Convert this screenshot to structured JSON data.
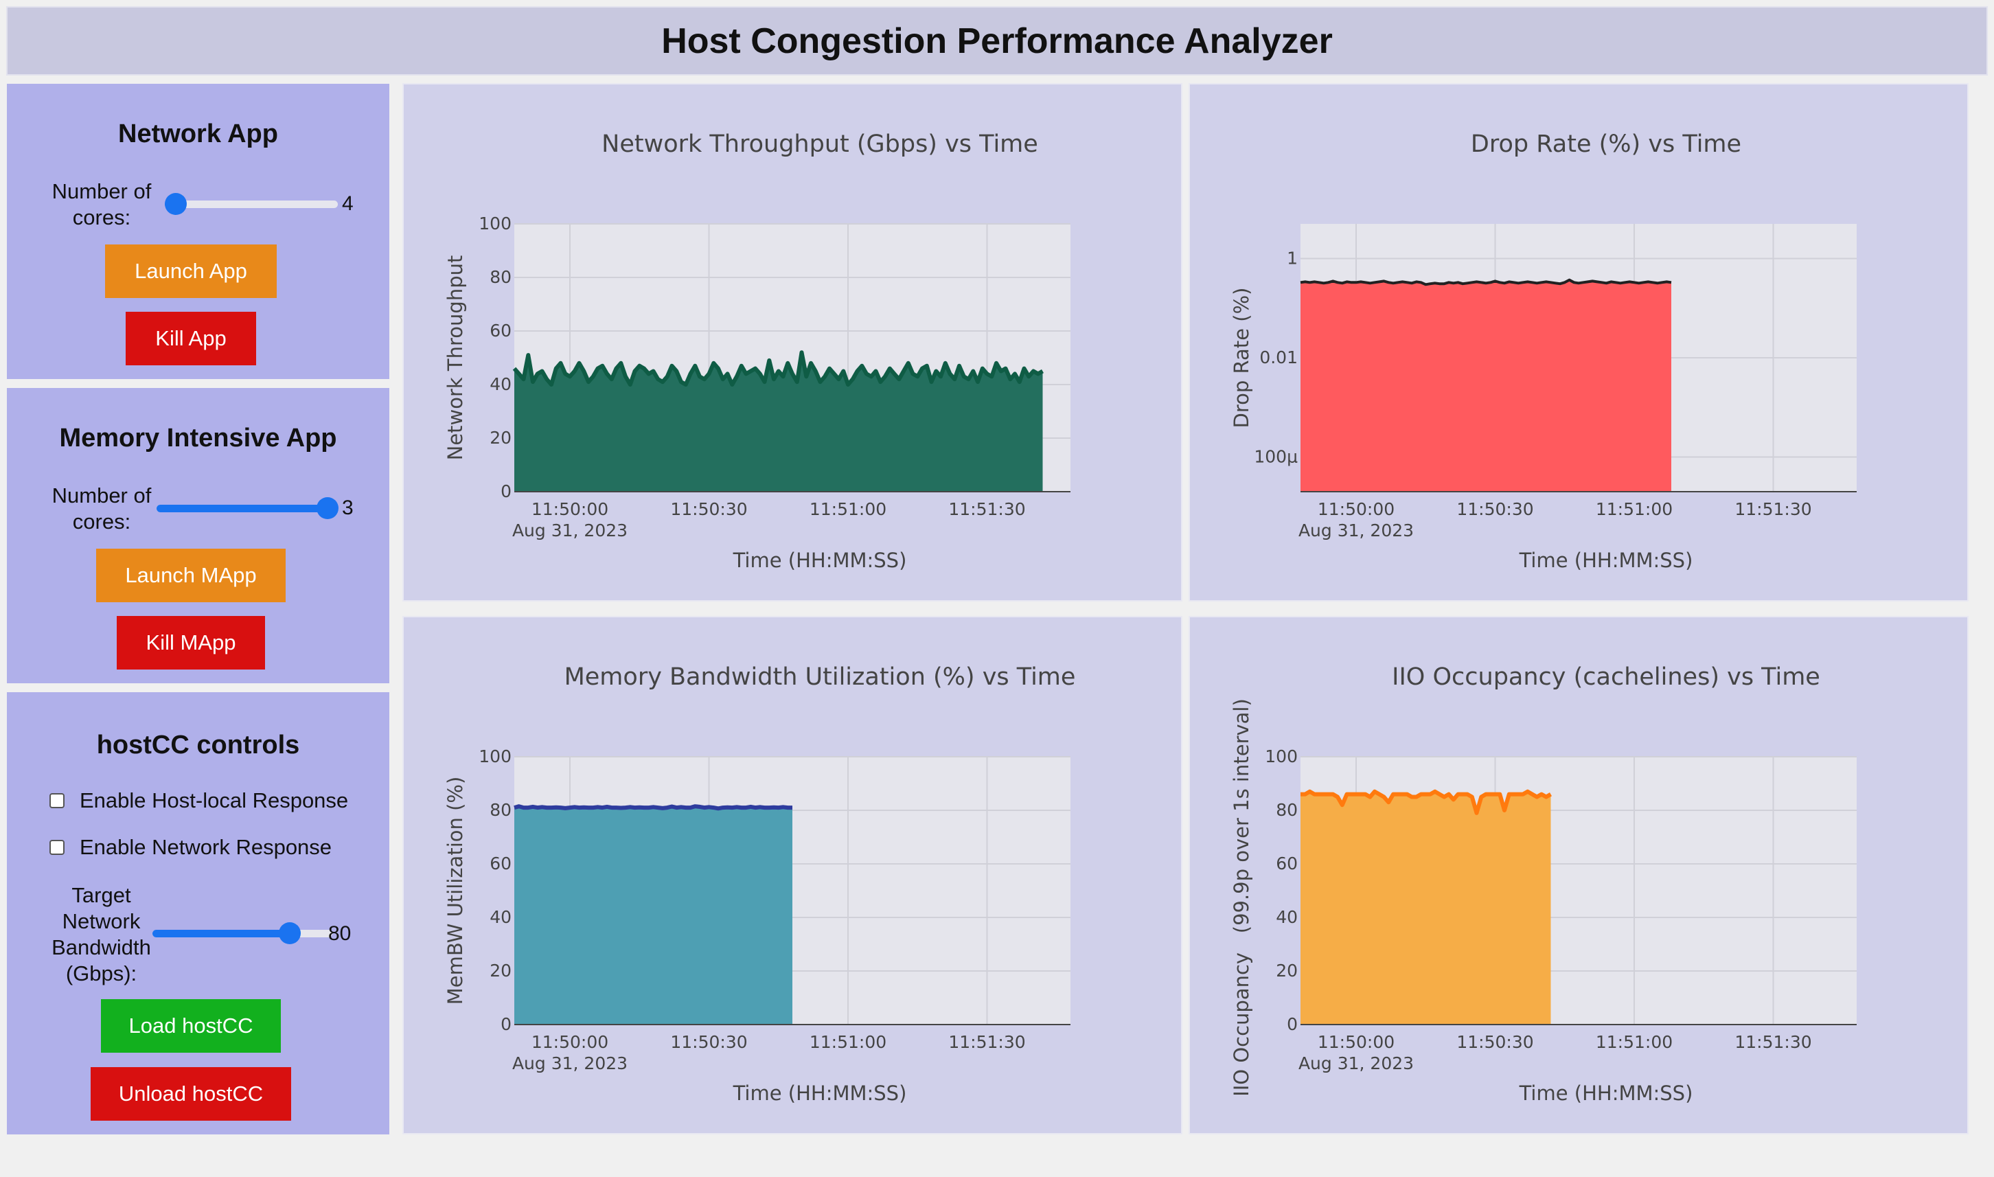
{
  "header": {
    "title": "Host Congestion Performance Analyzer"
  },
  "network_app": {
    "title": "Network App",
    "cores_label": "Number of cores:",
    "cores_value": "4",
    "cores_fraction": 0.0,
    "launch_label": "Launch App",
    "kill_label": "Kill App"
  },
  "memory_app": {
    "title": "Memory Intensive App",
    "cores_label": "Number of cores:",
    "cores_value": "3",
    "cores_fraction": 1.0,
    "launch_label": "Launch MApp",
    "kill_label": "Kill MApp"
  },
  "hostcc": {
    "title": "hostCC controls",
    "host_local_label": "Enable Host-local Response",
    "host_local_checked": false,
    "network_response_label": "Enable Network Response",
    "network_response_checked": false,
    "target_bw_label": "Target Network Bandwidth (Gbps):",
    "target_bw_value": "80",
    "target_bw_fraction": 0.8,
    "load_label": "Load hostCC",
    "unload_label": "Unload hostCC"
  },
  "colors": {
    "throughput_line": "#0f5c45",
    "throughput_fill": "#236f5e",
    "drop_line": "#222222",
    "drop_fill": "#ff5a5e",
    "membw_line": "#2e3c9e",
    "membw_fill": "#4e9fb3",
    "iio_line": "#ff7a0e",
    "iio_fill": "#f6ad47"
  },
  "chart_data": [
    {
      "type": "area",
      "title": "Network Throughput (Gbps) vs Time",
      "xlabel": "Time (HH:MM:SS)",
      "ylabel": "Network Throughput",
      "x_range": [
        "11:49:48",
        "11:51:48"
      ],
      "x_ticks": [
        "11:50:00",
        "11:50:30",
        "11:51:00",
        "11:51:30"
      ],
      "x_date_label": "Aug 31, 2023",
      "y_ticks": [
        "0",
        "20",
        "40",
        "60",
        "80",
        "100"
      ],
      "ylim": [
        0,
        100
      ],
      "log_y": false,
      "grid": true,
      "series": [
        {
          "x_start": "11:49:48",
          "x_step_seconds": 1,
          "values": [
            46,
            44,
            42,
            51,
            41,
            44,
            45,
            42,
            40,
            46,
            48,
            44,
            43,
            45,
            48,
            45,
            41,
            43,
            46,
            47,
            44,
            42,
            46,
            48,
            43,
            40,
            45,
            47,
            46,
            44,
            45,
            42,
            41,
            43,
            47,
            45,
            41,
            40,
            44,
            47,
            43,
            42,
            44,
            48,
            46,
            42,
            44,
            40,
            43,
            47,
            44,
            45,
            46,
            44,
            41,
            49,
            42,
            45,
            43,
            48,
            44,
            41,
            52,
            43,
            48,
            45,
            41,
            43,
            46,
            44,
            42,
            45,
            40,
            42,
            45,
            47,
            44,
            43,
            45,
            41,
            43,
            46,
            44,
            42,
            45,
            48,
            44,
            43,
            46,
            47,
            41,
            45,
            43,
            48,
            44,
            42,
            47,
            43,
            42,
            45,
            41,
            46,
            44,
            43,
            48,
            45,
            46,
            42,
            44,
            41,
            46,
            43,
            45,
            44,
            45
          ]
        }
      ]
    },
    {
      "type": "area",
      "title": "Drop Rate (%) vs Time",
      "xlabel": "Time (HH:MM:SS)",
      "ylabel": "Drop Rate (%)",
      "x_range": [
        "11:49:48",
        "11:51:48"
      ],
      "x_ticks": [
        "11:50:00",
        "11:50:30",
        "11:51:00",
        "11:51:30"
      ],
      "x_date_label": "Aug 31, 2023",
      "y_ticks": [
        "100μ",
        "0.01",
        "1"
      ],
      "ylim": [
        2e-05,
        5
      ],
      "log_y": true,
      "grid": true,
      "series": [
        {
          "x_start": "11:49:48",
          "x_step_seconds": 1,
          "values": [
            0.33,
            0.34,
            0.33,
            0.34,
            0.33,
            0.32,
            0.33,
            0.35,
            0.33,
            0.32,
            0.34,
            0.33,
            0.33,
            0.34,
            0.33,
            0.32,
            0.33,
            0.34,
            0.35,
            0.33,
            0.32,
            0.33,
            0.34,
            0.33,
            0.32,
            0.34,
            0.33,
            0.3,
            0.31,
            0.32,
            0.31,
            0.31,
            0.33,
            0.32,
            0.33,
            0.31,
            0.32,
            0.33,
            0.34,
            0.33,
            0.32,
            0.33,
            0.35,
            0.33,
            0.32,
            0.34,
            0.33,
            0.32,
            0.33,
            0.34,
            0.33,
            0.32,
            0.33,
            0.34,
            0.33,
            0.32,
            0.31,
            0.33,
            0.37,
            0.33,
            0.32,
            0.33,
            0.34,
            0.35,
            0.34,
            0.33,
            0.32,
            0.34,
            0.33,
            0.32,
            0.33,
            0.34,
            0.33,
            0.32,
            0.33,
            0.34,
            0.33,
            0.32,
            0.33,
            0.34,
            0.33
          ]
        }
      ]
    },
    {
      "type": "area",
      "title": "Memory Bandwidth Utilization (%) vs Time",
      "xlabel": "Time (HH:MM:SS)",
      "ylabel": "MemBW Utilization (%)",
      "x_range": [
        "11:49:48",
        "11:51:48"
      ],
      "x_ticks": [
        "11:50:00",
        "11:50:30",
        "11:51:00",
        "11:51:30"
      ],
      "x_date_label": "Aug 31, 2023",
      "y_ticks": [
        "0",
        "20",
        "40",
        "60",
        "80",
        "100"
      ],
      "ylim": [
        0,
        100
      ],
      "log_y": false,
      "grid": true,
      "series": [
        {
          "x_start": "11:49:48",
          "x_step_seconds": 1,
          "values": [
            81,
            81.5,
            81,
            81,
            81.3,
            81,
            81.2,
            81,
            81,
            81.1,
            81,
            80.8,
            81,
            81.2,
            81,
            81.1,
            81,
            81,
            81.2,
            81,
            81.3,
            81,
            81,
            80.9,
            81,
            81.2,
            81,
            81.1,
            81,
            81,
            81.2,
            81,
            80.8,
            81,
            81.4,
            81,
            81.2,
            81,
            81,
            81.5,
            81.3,
            81,
            81.2,
            81,
            80.7,
            81,
            81.1,
            81,
            81.2,
            81,
            81,
            81.3,
            81,
            81.2,
            81,
            81,
            81.1,
            81,
            81.2,
            81,
            81
          ]
        }
      ]
    },
    {
      "type": "area",
      "title": "IIO Occupancy (cachelines) vs Time",
      "xlabel": "Time (HH:MM:SS)",
      "ylabel": "IIO Occupancy   (99.9p over 1s interval)",
      "x_range": [
        "11:49:48",
        "11:51:48"
      ],
      "x_ticks": [
        "11:50:00",
        "11:50:30",
        "11:51:00",
        "11:51:30"
      ],
      "x_date_label": "Aug 31, 2023",
      "y_ticks": [
        "0",
        "20",
        "40",
        "60",
        "80",
        "100"
      ],
      "ylim": [
        0,
        100
      ],
      "log_y": false,
      "grid": true,
      "series": [
        {
          "x_start": "11:49:48",
          "x_step_seconds": 1,
          "values": [
            86,
            86,
            87,
            86,
            86,
            86,
            86,
            86,
            85,
            82,
            86,
            86,
            86,
            86,
            86,
            85,
            87,
            86,
            85,
            83,
            86,
            86,
            86,
            86,
            85,
            85,
            86,
            86,
            86,
            87,
            86,
            85,
            86,
            84,
            86,
            86,
            86,
            85,
            79,
            85,
            86,
            86,
            86,
            86,
            80,
            86,
            86,
            86,
            86,
            87,
            86,
            85,
            86,
            85,
            86
          ]
        }
      ]
    }
  ]
}
